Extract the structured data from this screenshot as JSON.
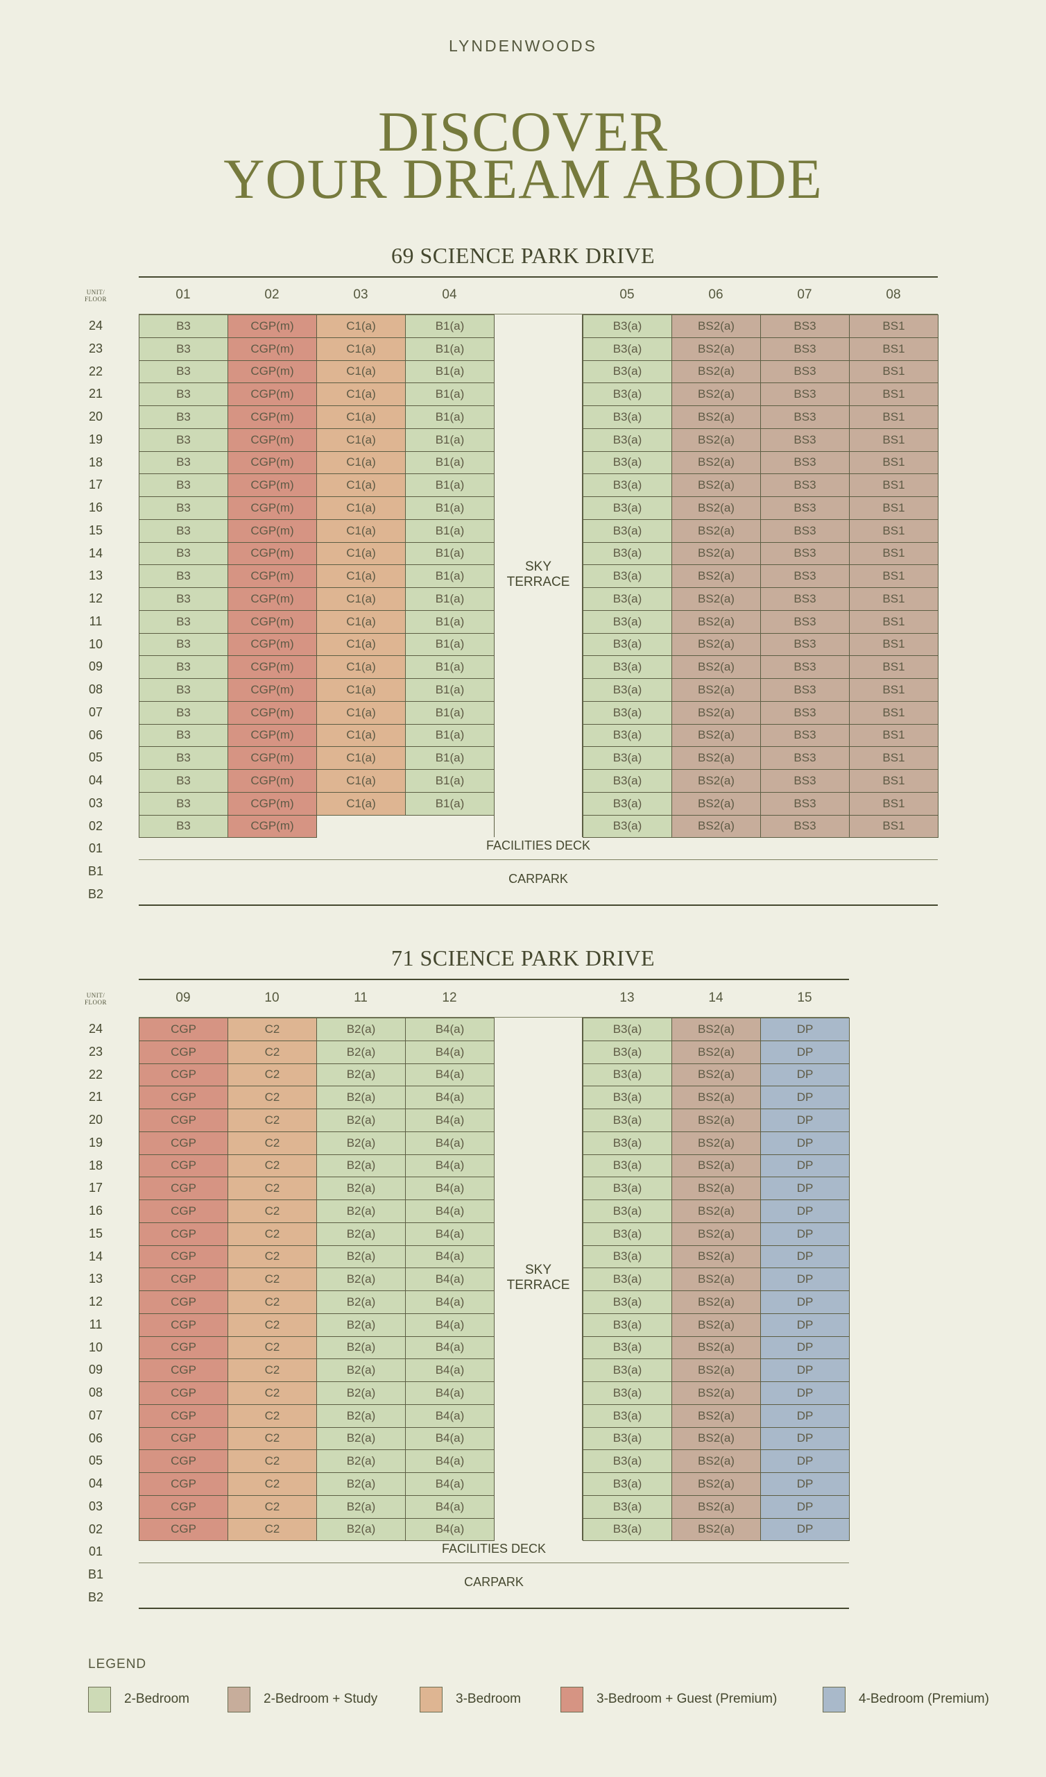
{
  "brand": "LYNDENWOODS",
  "hero": {
    "line1": "DISCOVER",
    "line2": "YOUR DREAM ABODE"
  },
  "floor_label": {
    "line1": "UNIT/",
    "line2": "FLOOR"
  },
  "colors": {
    "2b": "#cddab6",
    "2bs": "#c7ad9b",
    "3b": "#deb592",
    "3bg": "#d69483",
    "4b": "#a9b9ca"
  },
  "blocks": [
    {
      "title": "69 SCIENCE PARK DRIVE",
      "units": [
        "01",
        "02",
        "03",
        "04",
        "05",
        "06",
        "07",
        "08"
      ],
      "left_units": 4,
      "floors": [
        "24",
        "23",
        "22",
        "21",
        "20",
        "19",
        "18",
        "17",
        "16",
        "15",
        "14",
        "13",
        "12",
        "11",
        "10",
        "09",
        "08",
        "07",
        "06",
        "05",
        "04",
        "03",
        "02"
      ],
      "stack_types": [
        {
          "code": "B3",
          "type": "2b"
        },
        {
          "code": "CGP(m)",
          "type": "3bg"
        },
        {
          "code": "C1(a)",
          "type": "3b"
        },
        {
          "code": "B1(a)",
          "type": "2b"
        },
        {
          "code": "B3(a)",
          "type": "2b"
        },
        {
          "code": "BS2(a)",
          "type": "2bs"
        },
        {
          "code": "BS3",
          "type": "2bs"
        },
        {
          "code": "BS1",
          "type": "2bs"
        }
      ],
      "empty_units_on_floor_02": [
        "03",
        "04"
      ],
      "sky_terrace": {
        "line1": "SKY",
        "line2": "TERRACE"
      },
      "lower_floors": [
        "01",
        "B1",
        "B2"
      ],
      "facilities_deck": "FACILITIES DECK",
      "carpark": "CARPARK"
    },
    {
      "title": "71 SCIENCE PARK DRIVE",
      "units": [
        "09",
        "10",
        "11",
        "12",
        "13",
        "14",
        "15"
      ],
      "left_units": 4,
      "floors": [
        "24",
        "23",
        "22",
        "21",
        "20",
        "19",
        "18",
        "17",
        "16",
        "15",
        "14",
        "13",
        "12",
        "11",
        "10",
        "09",
        "08",
        "07",
        "06",
        "05",
        "04",
        "03",
        "02"
      ],
      "stack_types": [
        {
          "code": "CGP",
          "type": "3bg"
        },
        {
          "code": "C2",
          "type": "3b"
        },
        {
          "code": "B2(a)",
          "type": "2b"
        },
        {
          "code": "B4(a)",
          "type": "2b"
        },
        {
          "code": "B3(a)",
          "type": "2b"
        },
        {
          "code": "BS2(a)",
          "type": "2bs"
        },
        {
          "code": "DP",
          "type": "4b"
        }
      ],
      "empty_units_on_floor_02": [],
      "sky_terrace": {
        "line1": "SKY",
        "line2": "TERRACE"
      },
      "lower_floors": [
        "01",
        "B1",
        "B2"
      ],
      "facilities_deck": "FACILITIES DECK",
      "carpark": "CARPARK"
    }
  ],
  "legend": {
    "title": "LEGEND",
    "items": [
      {
        "type": "2b",
        "label": "2-Bedroom"
      },
      {
        "type": "2bs",
        "label": "2-Bedroom + Study"
      },
      {
        "type": "3b",
        "label": "3-Bedroom"
      },
      {
        "type": "3bg",
        "label": "3-Bedroom + Guest (Premium)"
      },
      {
        "type": "4b",
        "label": "4-Bedroom (Premium)"
      }
    ]
  }
}
